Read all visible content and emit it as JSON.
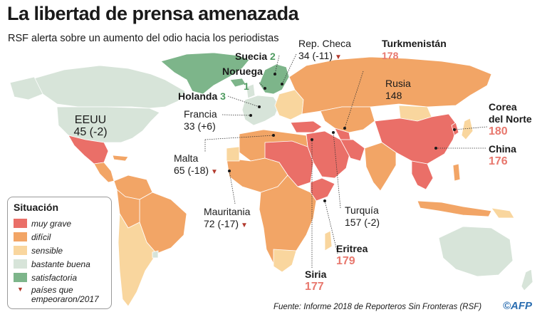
{
  "title": "La libertad de prensa amenazada",
  "subtitle": "RSF alerta sobre un aumento del odio hacia los periodistas",
  "colors": {
    "muy_grave": "#ea6f68",
    "dificil": "#f2a566",
    "sensible": "#f9d69e",
    "bastante_buena": "#d7e4d9",
    "satisfactoria": "#7db58a",
    "triangle": "#b23a2e",
    "highlight_red": "#e8786e",
    "highlight_green": "#4e9a5f"
  },
  "labels": {
    "eeuu": {
      "name": "EEUU",
      "value": "45 (-2)"
    },
    "suecia": {
      "name": "Suecia",
      "value": "2"
    },
    "noruega": {
      "name": "Noruega",
      "value": "1"
    },
    "holanda": {
      "name": "Holanda",
      "value": "3"
    },
    "francia": {
      "name": "Francia",
      "value": "33 (+6)"
    },
    "rep_checa": {
      "name": "Rep. Checa",
      "value": "34 (-11)"
    },
    "malta": {
      "name": "Malta",
      "value": "65 (-18)"
    },
    "mauritania": {
      "name": "Mauritania",
      "value": "72 (-17)"
    },
    "turkmenistan": {
      "name": "Turkmenistán",
      "value": "178"
    },
    "rusia": {
      "name": "Rusia",
      "value": "148"
    },
    "corea": {
      "name": "Corea del Norte",
      "value": "180",
      "line1": "Corea",
      "line2": "del Norte"
    },
    "china": {
      "name": "China",
      "value": "176"
    },
    "turquia": {
      "name": "Turquía",
      "value": "157 (-2)"
    },
    "eritrea": {
      "name": "Eritrea",
      "value": "179"
    },
    "siria": {
      "name": "Siria",
      "value": "177"
    }
  },
  "legend": {
    "title": "Situación",
    "items": [
      {
        "label": "muy grave",
        "color": "#ea6f68"
      },
      {
        "label": "difícil",
        "color": "#f2a566"
      },
      {
        "label": "sensible",
        "color": "#f9d69e"
      },
      {
        "label": "bastante buena",
        "color": "#d7e4d9"
      },
      {
        "label": "satisfactoria",
        "color": "#7db58a"
      }
    ],
    "worsened_line1": "países que",
    "worsened_line2": "empeoraron/2017"
  },
  "source": "Fuente: Informe 2018 de Reporteros Sin Fronteras (RSF)",
  "logo": "©AFP"
}
